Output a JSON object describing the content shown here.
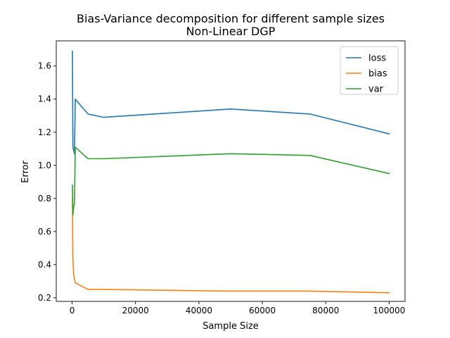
{
  "chart_data": {
    "type": "line",
    "title": "Bias-Variance decomposition for different sample sizes",
    "subtitle": "Non-Linear DGP",
    "xlabel": "Sample Size",
    "ylabel": "Error",
    "xlim": [
      -5000,
      105000
    ],
    "ylim": [
      0.178,
      1.752
    ],
    "xticks": [
      0,
      20000,
      40000,
      60000,
      80000,
      100000
    ],
    "yticks": [
      0.2,
      0.4,
      0.6,
      0.8,
      1.0,
      1.2,
      1.4,
      1.6
    ],
    "xtick_labels": [
      "0",
      "20000",
      "40000",
      "60000",
      "80000",
      "100000"
    ],
    "ytick_labels": [
      "0.2",
      "0.4",
      "0.6",
      "0.8",
      "1.0",
      "1.2",
      "1.4",
      "1.6"
    ],
    "grid": false,
    "legend_position": "top-right",
    "x": [
      100,
      250,
      500,
      750,
      1000,
      5000,
      10000,
      50000,
      75000,
      100000
    ],
    "series": [
      {
        "name": "loss",
        "color": "#1f77b4",
        "values": [
          1.69,
          1.11,
          1.09,
          1.07,
          1.4,
          1.31,
          1.29,
          1.34,
          1.31,
          1.19
        ]
      },
      {
        "name": "bias",
        "color": "#ff7f0e",
        "values": [
          0.8,
          0.44,
          0.34,
          0.31,
          0.29,
          0.25,
          0.25,
          0.24,
          0.24,
          0.23
        ]
      },
      {
        "name": "var",
        "color": "#2ca02c",
        "values": [
          0.88,
          0.7,
          0.75,
          0.77,
          1.11,
          1.04,
          1.04,
          1.07,
          1.06,
          0.95
        ]
      }
    ]
  }
}
